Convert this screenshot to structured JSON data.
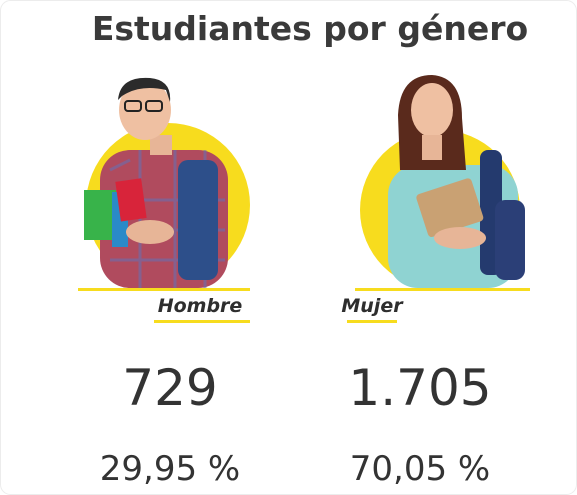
{
  "title": "Estudiantes por género",
  "groups": [
    {
      "label": "Hombre",
      "count": "729",
      "percent": "29,95 %"
    },
    {
      "label": "Mujer",
      "count": "1.705",
      "percent": "70,05 %"
    }
  ]
}
